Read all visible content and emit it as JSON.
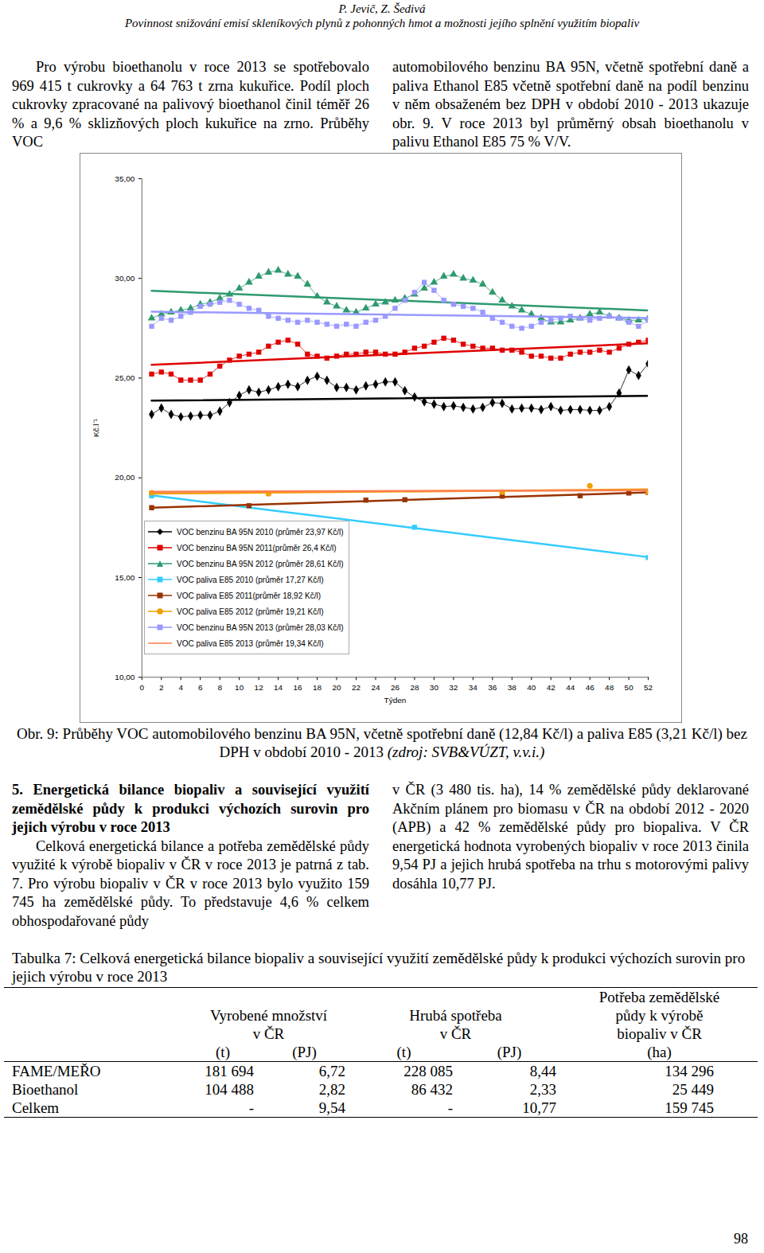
{
  "header": {
    "authors": "P. Jevič, Z. Šedivá",
    "title": "Povinnost snižování emisí skleníkových plynů z pohonných hmot a možnosti jejího splnění využitím biopaliv"
  },
  "intro": {
    "left": "Pro výrobu bioethanolu v roce 2013 se spotřebovalo 969 415 t cukrovky a 64 763 t zrna kukuřice. Podíl ploch cukrovky zpracované na palivový bioethanol činil téměř 26 % a 9,6 % sklizňových ploch kukuřice na zrno. Průběhy VOC",
    "right": "automobilového benzinu BA 95N, včetně spotřební daně a paliva Ethanol E85 včetně spotřební daně na podíl benzinu v něm obsaženém bez DPH v období 2010 - 2013 ukazuje obr. 9. V roce 2013 byl průměrný obsah bioethanolu v palivu Ethanol E85 75 % V/V."
  },
  "chart_data": {
    "type": "line",
    "x_label": "Týden",
    "y_label": "Kč.l⁻¹",
    "xlim": [
      0,
      52
    ],
    "xticks": [
      0,
      2,
      4,
      6,
      8,
      10,
      12,
      14,
      16,
      18,
      20,
      22,
      24,
      26,
      28,
      30,
      32,
      34,
      36,
      38,
      40,
      42,
      44,
      46,
      48,
      50,
      52
    ],
    "ylim": [
      10,
      35
    ],
    "yticks": [
      {
        "value": 10,
        "label": "10,00"
      },
      {
        "value": 15,
        "label": "15,00"
      },
      {
        "value": 20,
        "label": "20,00"
      },
      {
        "value": 25,
        "label": "25,00"
      },
      {
        "value": 30,
        "label": "30,00"
      },
      {
        "value": 35,
        "label": "35,00"
      }
    ],
    "grid": false,
    "legend": "bottom-left",
    "x": [
      1,
      2,
      3,
      4,
      5,
      6,
      7,
      8,
      9,
      10,
      11,
      12,
      13,
      14,
      15,
      16,
      17,
      18,
      19,
      20,
      21,
      22,
      23,
      24,
      25,
      26,
      27,
      28,
      29,
      30,
      31,
      32,
      33,
      34,
      35,
      36,
      37,
      38,
      39,
      40,
      41,
      42,
      43,
      44,
      45,
      46,
      47,
      48,
      49,
      50,
      51,
      52
    ],
    "series": [
      {
        "name": "VOC benzinu BA 95N 2010 (průměr 23,97 Kč/l)",
        "color": "#000000",
        "marker": "diamond",
        "values": [
          23.18,
          23.5,
          23.18,
          23.06,
          23.1,
          23.14,
          23.14,
          23.34,
          23.77,
          24.13,
          24.41,
          24.29,
          24.41,
          24.57,
          24.69,
          24.57,
          24.89,
          25.09,
          24.89,
          24.53,
          24.53,
          24.41,
          24.61,
          24.69,
          24.81,
          24.81,
          24.37,
          24.05,
          23.81,
          23.69,
          23.57,
          23.61,
          23.53,
          23.45,
          23.53,
          23.77,
          23.73,
          23.45,
          23.49,
          23.49,
          23.42,
          23.57,
          23.38,
          23.42,
          23.42,
          23.38,
          23.38,
          23.57,
          24.25,
          25.41,
          25.13,
          25.72
        ]
      },
      {
        "name": "VOC benzinu BA 95N 2011(průměr 26,4 Kč/l)",
        "color": "#e00000",
        "marker": "square",
        "values": [
          25.2,
          25.3,
          25.2,
          24.9,
          24.9,
          24.9,
          25.2,
          25.6,
          25.9,
          26.1,
          26.2,
          26.3,
          26.6,
          26.8,
          26.9,
          26.7,
          26.2,
          26.1,
          26.0,
          26.1,
          26.2,
          26.2,
          26.3,
          26.3,
          26.2,
          26.2,
          26.3,
          26.5,
          26.6,
          26.8,
          27.0,
          26.9,
          26.7,
          26.6,
          26.5,
          26.5,
          26.4,
          26.4,
          26.3,
          26.1,
          26.1,
          26.0,
          26.0,
          26.2,
          26.3,
          26.3,
          26.4,
          26.3,
          26.5,
          26.7,
          26.8,
          26.9
        ]
      },
      {
        "name": "VOC benzinu BA 95N 2012 (průměr 28,61 Kč/l)",
        "color": "#2e9a6e",
        "marker": "triangle",
        "values": [
          28.0,
          28.2,
          28.3,
          28.4,
          28.5,
          28.7,
          28.8,
          29.0,
          29.2,
          29.5,
          29.8,
          30.1,
          30.3,
          30.4,
          30.2,
          30.1,
          29.7,
          29.1,
          28.8,
          28.6,
          28.4,
          28.3,
          28.5,
          28.7,
          28.8,
          28.9,
          29.0,
          29.2,
          29.5,
          29.8,
          30.1,
          30.2,
          30.0,
          29.9,
          29.7,
          29.3,
          28.9,
          28.6,
          28.4,
          28.2,
          28.0,
          27.8,
          27.8,
          27.9,
          28.0,
          28.2,
          28.3,
          28.1,
          28.0,
          27.9,
          27.9,
          28.0
        ]
      },
      {
        "name": "VOC paliva E85 2010 (průměr 17,27 Kč/l)",
        "color": "#33ccff",
        "marker": "square",
        "values": [
          19.1,
          null,
          null,
          null,
          null,
          null,
          null,
          null,
          null,
          null,
          null,
          null,
          null,
          null,
          null,
          null,
          null,
          null,
          null,
          null,
          null,
          null,
          null,
          null,
          null,
          null,
          null,
          17.52,
          null,
          null,
          null,
          null,
          null,
          null,
          null,
          null,
          null,
          null,
          null,
          null,
          null,
          null,
          null,
          null,
          null,
          null,
          null,
          null,
          null,
          null,
          null,
          16.0
        ]
      },
      {
        "name": "VOC paliva E85 2011(průměr 18,92 Kč/l)",
        "color": "#993300",
        "marker": "square",
        "values": [
          18.5,
          null,
          null,
          null,
          null,
          null,
          null,
          null,
          null,
          null,
          18.6,
          null,
          null,
          null,
          null,
          null,
          null,
          null,
          null,
          null,
          null,
          null,
          18.88,
          null,
          null,
          null,
          18.9,
          null,
          null,
          null,
          null,
          null,
          null,
          null,
          null,
          null,
          19.08,
          null,
          null,
          null,
          null,
          null,
          null,
          null,
          19.1,
          null,
          null,
          null,
          null,
          19.24,
          null,
          19.27
        ]
      },
      {
        "name": "VOC paliva E85 2012 (průměr 19,21 Kč/l)",
        "color": "#f0a000",
        "marker": "circle",
        "values": [
          19.25,
          null,
          null,
          null,
          null,
          null,
          null,
          null,
          null,
          null,
          null,
          null,
          19.2,
          null,
          null,
          null,
          null,
          null,
          null,
          null,
          null,
          null,
          null,
          null,
          null,
          null,
          null,
          null,
          null,
          null,
          null,
          null,
          null,
          null,
          null,
          null,
          19.28,
          null,
          null,
          null,
          null,
          null,
          null,
          null,
          null,
          19.6,
          null,
          null,
          null,
          null,
          null,
          19.3
        ]
      },
      {
        "name": "VOC benzinu BA 95N 2013 (průměr 28,03 Kč/l)",
        "color": "#9999ff",
        "marker": "square",
        "values": [
          27.6,
          28.0,
          27.9,
          28.1,
          28.3,
          28.6,
          28.7,
          28.8,
          28.9,
          28.7,
          28.5,
          28.4,
          28.1,
          28.0,
          27.9,
          27.8,
          27.9,
          27.8,
          27.7,
          27.6,
          27.7,
          27.6,
          27.8,
          27.9,
          28.1,
          28.5,
          28.9,
          29.3,
          29.8,
          29.4,
          28.9,
          28.7,
          28.6,
          28.5,
          28.3,
          28.0,
          27.8,
          27.6,
          27.5,
          27.6,
          27.8,
          27.9,
          28.0,
          28.1,
          28.0,
          27.9,
          28.0,
          28.1,
          28.0,
          27.8,
          27.6,
          27.9
        ]
      },
      {
        "name": "VOC paliva E85 2013 (průměr 19,34 Kč/l)",
        "color": "#ff7f50",
        "marker": "none",
        "values": [
          19.3,
          null,
          null,
          null,
          null,
          null,
          null,
          null,
          null,
          null,
          null,
          null,
          19.32,
          null,
          null,
          null,
          null,
          null,
          null,
          null,
          null,
          null,
          null,
          null,
          null,
          19.34,
          null,
          null,
          null,
          null,
          null,
          null,
          null,
          null,
          null,
          null,
          null,
          null,
          19.36,
          null,
          null,
          null,
          null,
          null,
          null,
          null,
          null,
          null,
          null,
          null,
          null,
          19.38
        ]
      }
    ]
  },
  "caption": {
    "text": "Obr. 9: Průběhy VOC automobilového benzinu BA 95N, včetně spotřební daně (12,84 Kč/l) a paliva E85 (3,21 Kč/l) bez DPH v období 2010 - 2013",
    "source": "(zdroj: SVB&VÚZT, v.v.i.)"
  },
  "section": {
    "heading": "5. Energetická bilance biopaliv a související využití zemědělské půdy k produkci výchozích surovin pro jejich výrobu v roce 2013",
    "text_left": "Celková energetická bilance a potřeba zemědělské půdy využité k výrobě biopaliv v ČR v roce 2013 je patrná z tab. 7. Pro výrobu biopaliv v ČR v roce 2013 bylo využito 159 745 ha zemědělské půdy. To představuje 4,6 % celkem obhospodařované půdy",
    "text_right": "v ČR (3 480 tis. ha), 14 % zemědělské půdy deklarované Akčním plánem pro biomasu v ČR na období 2012 - 2020 (APB) a 42 % zemědělské půdy pro biopaliva. V ČR energetická hodnota vyrobených biopaliv v roce 2013 činila 9,54 PJ a jejich hrubá spotřeba na trhu s motorovými palivy dosáhla 10,77 PJ."
  },
  "table": {
    "caption": "Tabulka 7: Celková energetická bilance biopaliv a související využití zemědělské půdy k produkci výchozích surovin pro jejich výrobu v roce 2013",
    "groups": [
      {
        "label": "Vyrobené množství\nv ČR",
        "span": 2
      },
      {
        "label": "Hrubá spotřeba\nv ČR",
        "span": 2
      },
      {
        "label": "Potřeba zemědělské\npůdy k výrobě\nbiopaliv v ČR",
        "span": 1
      }
    ],
    "units": [
      "(t)",
      "(PJ)",
      "(t)",
      "(PJ)",
      "(ha)"
    ],
    "rows": [
      [
        "FAME/MEŘO",
        "181 694",
        "6,72",
        "228 085",
        "8,44",
        "134 296"
      ],
      [
        "Bioethanol",
        "104 488",
        "2,82",
        "86 432",
        "2,33",
        "25 449"
      ],
      [
        "Celkem",
        "-",
        "9,54",
        "-",
        "10,77",
        "159 745"
      ]
    ]
  },
  "page_number": "98"
}
